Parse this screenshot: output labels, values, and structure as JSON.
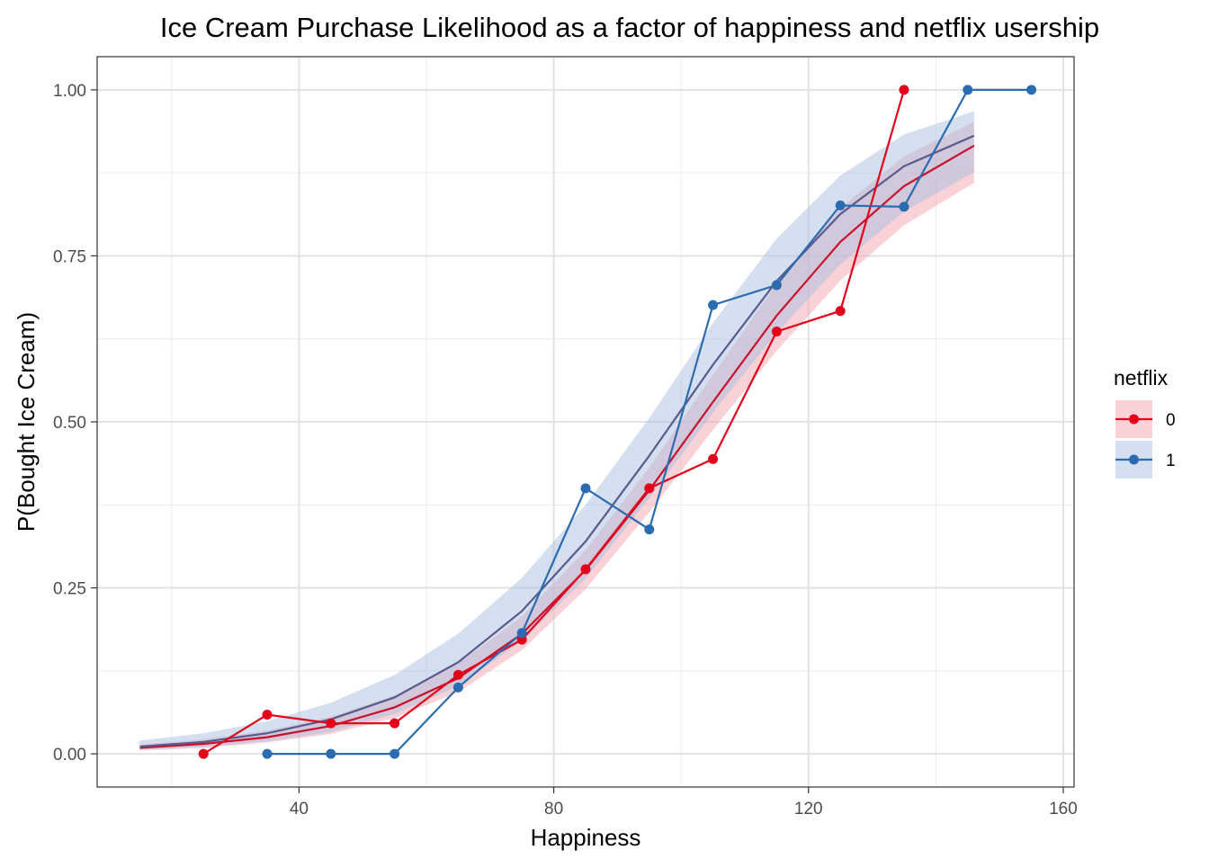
{
  "chart_data": {
    "type": "line",
    "title": "Ice Cream Purchase Likelihood as a factor of happiness and netflix usership",
    "xlabel": "Happiness",
    "ylabel": "P(Bought Ice Cream)",
    "xlim": [
      8.3,
      161.7
    ],
    "ylim": [
      -0.05,
      1.05
    ],
    "x_ticks": [
      40,
      80,
      120,
      160
    ],
    "x_tick_labels": [
      "40",
      "80",
      "120",
      "160"
    ],
    "y_ticks": [
      0.0,
      0.25,
      0.5,
      0.75,
      1.0
    ],
    "y_tick_labels": [
      "0.00",
      "0.25",
      "0.50",
      "0.75",
      "1.00"
    ],
    "grid": true,
    "legend": {
      "title": "netflix",
      "position": "right",
      "entries": [
        "0",
        "1"
      ]
    },
    "series": [
      {
        "name": "0",
        "color": "#E3001B",
        "ribbon_color": "#F4A6B0",
        "points": {
          "x": [
            25,
            35,
            45,
            55,
            65,
            75,
            85,
            95,
            105,
            115,
            125,
            135
          ],
          "y": [
            0.0,
            0.059,
            0.046,
            0.046,
            0.119,
            0.172,
            0.278,
            0.4,
            0.444,
            0.636,
            0.667,
            1.0
          ]
        },
        "fit": {
          "x": [
            15,
            25,
            35,
            45,
            55,
            65,
            75,
            85,
            95,
            105,
            115,
            125,
            135,
            146
          ],
          "y": [
            0.009,
            0.015,
            0.025,
            0.042,
            0.07,
            0.114,
            0.181,
            0.277,
            0.397,
            0.53,
            0.66,
            0.771,
            0.855,
            0.916
          ],
          "lower": [
            0.005,
            0.009,
            0.017,
            0.03,
            0.054,
            0.093,
            0.156,
            0.248,
            0.364,
            0.488,
            0.607,
            0.713,
            0.796,
            0.86
          ],
          "upper": [
            0.014,
            0.022,
            0.035,
            0.056,
            0.088,
            0.136,
            0.207,
            0.307,
            0.431,
            0.571,
            0.708,
            0.822,
            0.9,
            0.952
          ]
        }
      },
      {
        "name": "1",
        "color": "#2B6CB0",
        "ribbon_color": "#A9BFE0",
        "points": {
          "x": [
            35,
            45,
            55,
            65,
            75,
            85,
            95,
            105,
            115,
            125,
            135,
            145,
            155
          ],
          "y": [
            0.0,
            0.0,
            0.0,
            0.1,
            0.182,
            0.4,
            0.338,
            0.676,
            0.706,
            0.826,
            0.824,
            1.0,
            1.0
          ]
        },
        "fit": {
          "x": [
            15,
            25,
            35,
            45,
            55,
            65,
            75,
            85,
            95,
            105,
            115,
            125,
            135,
            146
          ],
          "y": [
            0.011,
            0.018,
            0.031,
            0.052,
            0.085,
            0.138,
            0.215,
            0.32,
            0.449,
            0.586,
            0.712,
            0.813,
            0.885,
            0.931
          ],
          "lower": [
            0.006,
            0.01,
            0.019,
            0.033,
            0.06,
            0.102,
            0.17,
            0.264,
            0.385,
            0.514,
            0.634,
            0.737,
            0.817,
            0.876
          ],
          "upper": [
            0.02,
            0.031,
            0.049,
            0.077,
            0.119,
            0.181,
            0.265,
            0.375,
            0.506,
            0.649,
            0.776,
            0.871,
            0.933,
            0.968
          ]
        }
      }
    ]
  }
}
